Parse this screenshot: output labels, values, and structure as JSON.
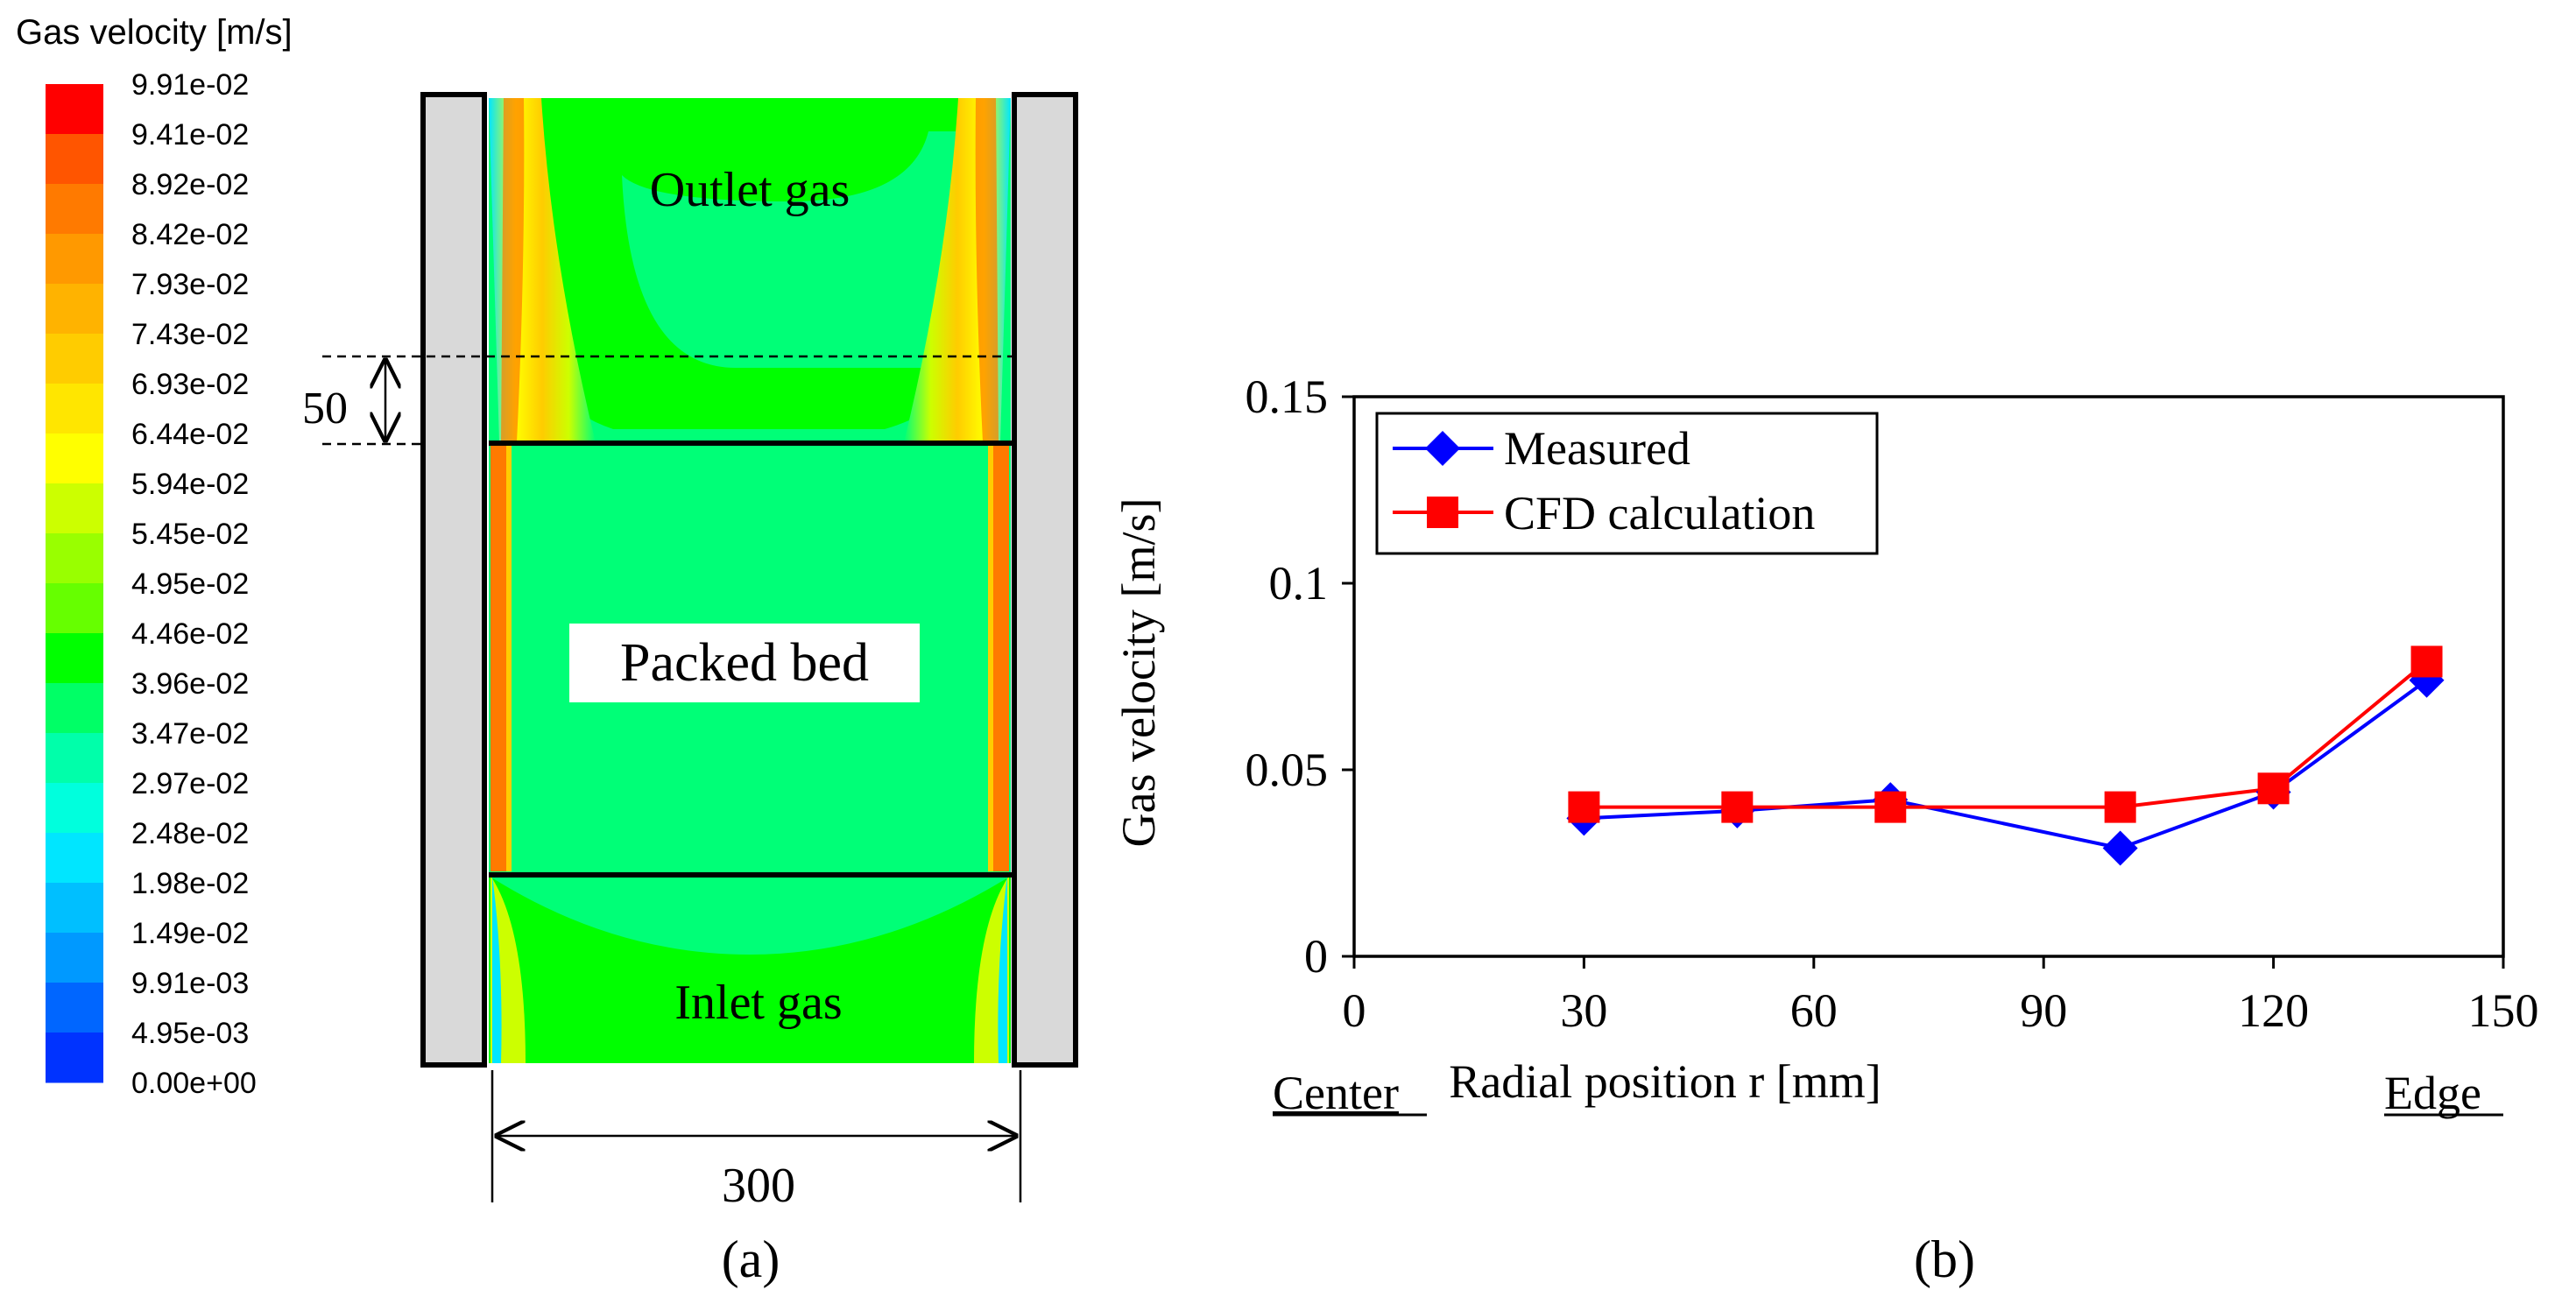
{
  "panel_a": {
    "colorbar_title": "Gas velocity [m/s]",
    "colorbar_ticks": [
      "9.91e-02",
      "9.41e-02",
      "8.92e-02",
      "8.42e-02",
      "7.93e-02",
      "7.43e-02",
      "6.93e-02",
      "6.44e-02",
      "5.94e-02",
      "5.45e-02",
      "4.95e-02",
      "4.46e-02",
      "3.96e-02",
      "3.47e-02",
      "2.97e-02",
      "2.48e-02",
      "1.98e-02",
      "1.49e-02",
      "9.91e-03",
      "4.95e-03",
      "0.00e+00"
    ],
    "colorbar_colors": [
      "#ff0000",
      "#ff5500",
      "#ff7a00",
      "#ff9900",
      "#ffb300",
      "#ffcc00",
      "#ffe600",
      "#ffff00",
      "#ccff00",
      "#99ff00",
      "#66ff00",
      "#00ff00",
      "#00ff66",
      "#00ffaa",
      "#00ffdd",
      "#00e6ff",
      "#00bfff",
      "#0099ff",
      "#0066ff",
      "#0033ff"
    ],
    "labels": {
      "outlet": "Outlet gas",
      "packed": "Packed bed",
      "inlet": "Inlet gas",
      "dim_height": "50",
      "dim_width": "300",
      "caption": "(a)"
    },
    "colors": {
      "bulk": "#00ff77",
      "wall": "#d9d9d9",
      "jet": "#ff7a00"
    }
  },
  "panel_b": {
    "caption": "(b)",
    "center_label": "Center",
    "edge_label": "Edge"
  },
  "chart_data": {
    "type": "line",
    "title": "",
    "xlabel": "Radial position   r [mm]",
    "ylabel": "Gas velocity [m/s]",
    "xlim": [
      0,
      150
    ],
    "ylim": [
      0,
      0.15
    ],
    "xticks": [
      0,
      30,
      60,
      90,
      120,
      150
    ],
    "xtick_labels": [
      "0",
      "30",
      "60",
      "90",
      "120",
      "150"
    ],
    "yticks": [
      0,
      0.05,
      0.1,
      0.15
    ],
    "ytick_labels": [
      "0",
      "0.05",
      "0.1",
      "0.15"
    ],
    "legend_position": "top-left",
    "series": [
      {
        "name": "Measured",
        "marker": "diamond",
        "color": "#0000ff",
        "x": [
          30,
          50,
          70,
          100,
          120,
          140
        ],
        "y": [
          0.037,
          0.039,
          0.042,
          0.029,
          0.044,
          0.074
        ]
      },
      {
        "name": "CFD calculation",
        "marker": "square",
        "color": "#ff0000",
        "x": [
          30,
          50,
          70,
          100,
          120,
          140
        ],
        "y": [
          0.04,
          0.04,
          0.04,
          0.04,
          0.045,
          0.079
        ]
      }
    ]
  }
}
